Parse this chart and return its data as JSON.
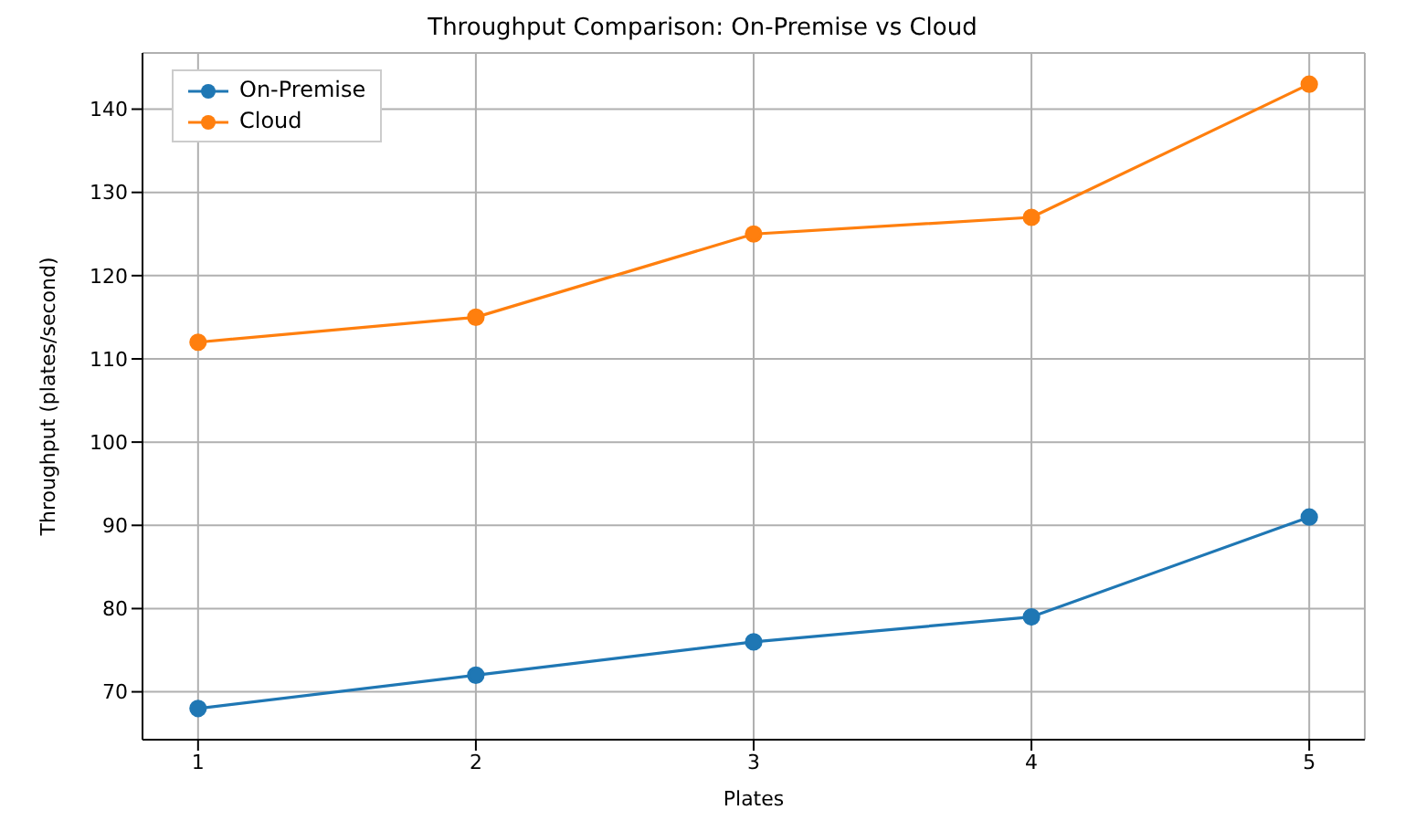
{
  "chart_data": {
    "type": "line",
    "title": "Throughput Comparison: On-Premise vs Cloud",
    "xlabel": "Plates",
    "ylabel": "Throughput (plates/second)",
    "x": [
      1,
      2,
      3,
      4,
      5
    ],
    "series": [
      {
        "name": "On-Premise",
        "color": "#1f77b4",
        "values": [
          68,
          72,
          76,
          79,
          91
        ]
      },
      {
        "name": "Cloud",
        "color": "#ff7f0e",
        "values": [
          112,
          115,
          125,
          127,
          143
        ]
      }
    ],
    "xlim": [
      0.8,
      5.2
    ],
    "xticks": [
      1,
      2,
      3,
      4,
      5
    ],
    "ylim": [
      64.25,
      146.75
    ],
    "yticks": [
      70,
      80,
      90,
      100,
      110,
      120,
      130,
      140
    ],
    "grid": true,
    "legend": "top left",
    "marker": "circle",
    "line_style": "solid"
  }
}
